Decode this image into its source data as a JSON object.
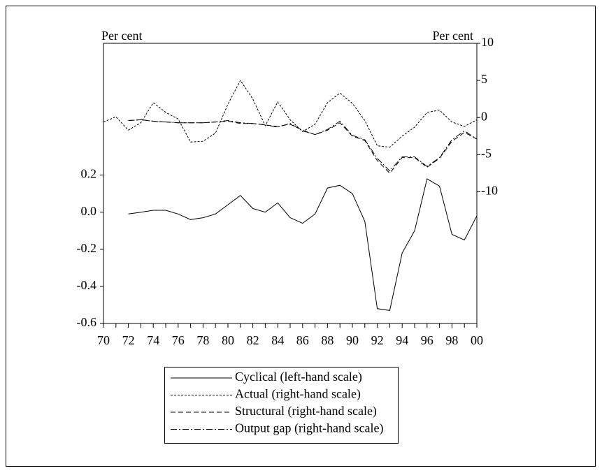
{
  "chart_data": {
    "type": "line",
    "ylabel": "Per cent",
    "y2label": "Per cent",
    "x": [
      1970,
      1971,
      1972,
      1973,
      1974,
      1975,
      1976,
      1977,
      1978,
      1979,
      1980,
      1981,
      1982,
      1983,
      1984,
      1985,
      1986,
      1987,
      1988,
      1989,
      1990,
      1991,
      1992,
      1993,
      1994,
      1995,
      1996,
      1997,
      1998,
      1999,
      2000
    ],
    "xlim": [
      1970,
      2000
    ],
    "xticks": [
      {
        "value": 1970,
        "label": "70"
      },
      {
        "value": 1972,
        "label": "72"
      },
      {
        "value": 1974,
        "label": "74"
      },
      {
        "value": 1976,
        "label": "76"
      },
      {
        "value": 1978,
        "label": "78"
      },
      {
        "value": 1980,
        "label": "80"
      },
      {
        "value": 1982,
        "label": "82"
      },
      {
        "value": 1984,
        "label": "84"
      },
      {
        "value": 1986,
        "label": "86"
      },
      {
        "value": 1988,
        "label": "88"
      },
      {
        "value": 1990,
        "label": "90"
      },
      {
        "value": 1992,
        "label": "92"
      },
      {
        "value": 1994,
        "label": "94"
      },
      {
        "value": 1996,
        "label": "96"
      },
      {
        "value": 1998,
        "label": "98"
      },
      {
        "value": 2000,
        "label": "00"
      }
    ],
    "ylim": [
      -0.6,
      0.91
    ],
    "yticks": [
      -0.6,
      -0.4,
      -0.2,
      {
        "value": 0,
        "label": "0.0"
      },
      0.2
    ],
    "y2lim": [
      -27.75,
      10
    ],
    "y2ticks": [
      -10,
      -5,
      0,
      5,
      10
    ],
    "series": [
      {
        "name": "Cyclical (left-hand scale)",
        "color": "#000000",
        "axis": "y",
        "values": [
          null,
          null,
          -0.01,
          0.0,
          0.01,
          0.01,
          -0.01,
          -0.04,
          -0.03,
          -0.01,
          0.04,
          0.09,
          0.02,
          0.0,
          0.05,
          -0.03,
          -0.06,
          -0.01,
          0.13,
          0.145,
          0.1,
          -0.05,
          -0.52,
          -0.53,
          -0.22,
          -0.1,
          0.18,
          0.14,
          -0.12,
          -0.15,
          -0.02
        ]
      },
      {
        "name": "Actual (right-hand scale)",
        "color": "#000000",
        "axis": "y2",
        "values": [
          -0.6,
          0.1,
          -1.7,
          -0.7,
          2.0,
          0.7,
          -0.2,
          -3.3,
          -3.2,
          -2.1,
          1.8,
          5.0,
          2.5,
          -1.1,
          2.1,
          -0.3,
          -1.9,
          -0.9,
          2.0,
          3.3,
          1.9,
          -0.4,
          -3.8,
          -4.0,
          -2.5,
          -1.3,
          0.7,
          1.0,
          -0.6,
          -1.2,
          -0.3
        ]
      },
      {
        "name": "Structural (right-hand scale)",
        "color": "#000000",
        "axis": "y2",
        "values": [
          null,
          null,
          -0.4,
          -0.3,
          -0.5,
          -0.6,
          -0.7,
          -0.7,
          -0.7,
          -0.6,
          -0.5,
          -0.8,
          -0.8,
          -1.0,
          -1.2,
          -0.9,
          -1.7,
          -2.3,
          -1.7,
          -0.7,
          -2.5,
          -3.1,
          -5.8,
          -7.5,
          -5.4,
          -5.4,
          -6.7,
          -5.5,
          -3.2,
          -2.0,
          -2.9
        ]
      },
      {
        "name": "Output gap (right-hand scale)",
        "color": "#000000",
        "axis": "y2",
        "values": [
          null,
          null,
          -0.4,
          -0.3,
          -0.5,
          -0.6,
          -0.7,
          -0.7,
          -0.7,
          -0.6,
          -0.4,
          -0.7,
          -0.8,
          -1.0,
          -1.3,
          -0.8,
          -1.8,
          -2.3,
          -1.6,
          -0.5,
          -2.4,
          -3.0,
          -5.5,
          -7.2,
          -5.3,
          -5.3,
          -6.6,
          -5.4,
          -3.0,
          -1.8,
          -2.9
        ]
      }
    ]
  }
}
